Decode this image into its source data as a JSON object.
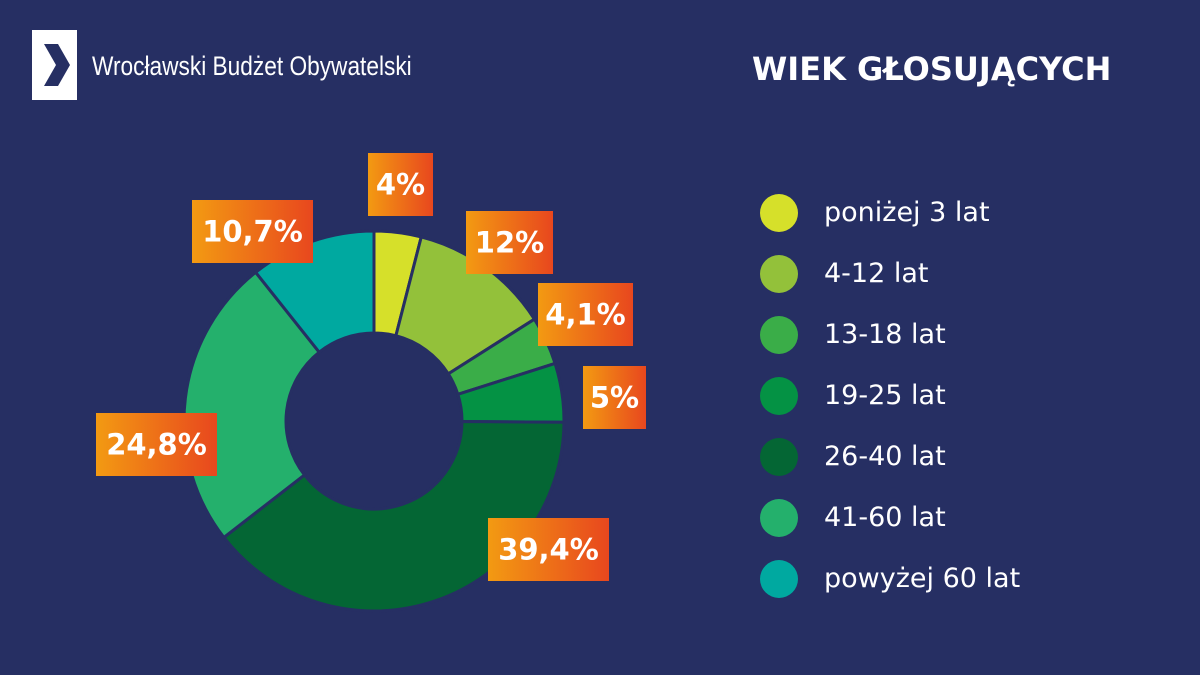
{
  "header": {
    "brand": "Wrocławski Budżet Obywatelski",
    "title": "WIEK GŁOSUJĄCYCH"
  },
  "icons": {
    "logo": "chevron-right-icon"
  },
  "colors": {
    "background": "#262f63",
    "label_gradient_start": "#f39a12",
    "label_gradient_end": "#e8471e"
  },
  "chart_data": {
    "type": "pie",
    "style": "donut",
    "categories": [
      "poniżej 3 lat",
      "4-12 lat",
      "13-18 lat",
      "19-25 lat",
      "26-40 lat",
      "41-60 lat",
      "powyżej 60 lat"
    ],
    "values": [
      4,
      12,
      4.1,
      5,
      39.4,
      24.8,
      10.7
    ],
    "value_labels": [
      "4%",
      "12%",
      "4,1%",
      "5%",
      "39,4%",
      "24,8%",
      "10,7%"
    ],
    "colors": [
      "#d6e02a",
      "#93c13a",
      "#3aad48",
      "#049244",
      "#046634",
      "#24b06c",
      "#00a9a0"
    ],
    "legend_position": "right"
  }
}
